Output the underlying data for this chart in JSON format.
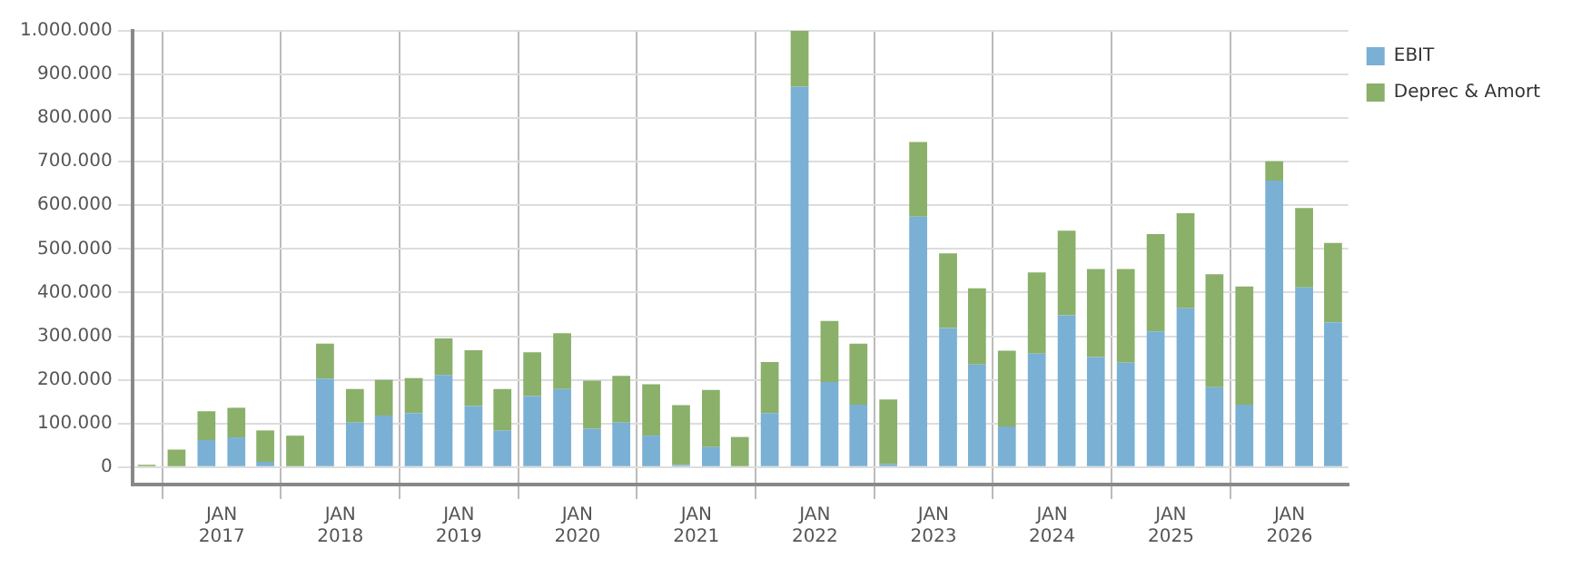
{
  "chart_data": {
    "type": "bar",
    "stacked": true,
    "grid": true,
    "legend": "top right",
    "x": [
      "2016-05-15",
      "2016-08-15",
      "2016-11-15",
      "2017-02-15",
      "2017-05-15",
      "2017-08-15",
      "2017-11-15",
      "2018-02-15",
      "2018-05-15",
      "2018-08-15",
      "2018-11-15",
      "2019-02-15",
      "2019-05-15",
      "2019-08-15",
      "2019-11-15",
      "2020-02-15",
      "2020-05-15",
      "2020-08-15",
      "2020-11-15",
      "2021-02-15",
      "2021-05-15",
      "2021-08-15",
      "2021-11-15",
      "2022-02-15",
      "2022-05-15",
      "2022-08-15",
      "2022-11-15",
      "2023-02-15",
      "2023-05-15",
      "2023-08-15",
      "2023-11-15",
      "2024-02-15",
      "2024-05-15",
      "2024-08-15",
      "2024-11-15",
      "2025-02-15",
      "2025-05-15",
      "2025-08-15",
      "2025-11-15",
      "2026-02-15",
      "2026-05-15"
    ],
    "series": [
      {
        "name": "EBIT",
        "color": "#7ab0d4",
        "values": [
          0,
          0,
          62000,
          68000,
          12000,
          0,
          203000,
          102000,
          118000,
          124000,
          211000,
          140000,
          84000,
          163000,
          179000,
          88000,
          102000,
          72000,
          5000,
          46000,
          0,
          124000,
          872000,
          195000,
          143000,
          7000,
          574000,
          319000,
          235000,
          93000,
          260000,
          348000,
          252000,
          239000,
          311000,
          364000,
          183000,
          143000,
          657000,
          412000,
          332000
        ]
      },
      {
        "name": "Deprec & Amort",
        "color": "#8ab06a",
        "values": [
          5000,
          40000,
          66000,
          68000,
          72000,
          72000,
          80000,
          77000,
          82000,
          80000,
          84000,
          128000,
          95000,
          100000,
          128000,
          110000,
          107000,
          118000,
          137000,
          131000,
          69000,
          117000,
          128000,
          140000,
          140000,
          148000,
          171000,
          171000,
          175000,
          174000,
          186000,
          194000,
          202000,
          215000,
          223000,
          218000,
          259000,
          271000,
          44000,
          182000,
          182000
        ]
      }
    ],
    "xlim": [
      "2016-04-01",
      "2026-07-01"
    ],
    "xticks": [
      {
        "value": "2017-01-01",
        "label": "JAN 2017"
      },
      {
        "value": "2018-01-01",
        "label": "JAN 2018"
      },
      {
        "value": "2019-01-01",
        "label": "JAN 2019"
      },
      {
        "value": "2020-01-01",
        "label": "JAN 2020"
      },
      {
        "value": "2021-01-01",
        "label": "JAN 2021"
      },
      {
        "value": "2022-01-01",
        "label": "JAN 2022"
      },
      {
        "value": "2023-01-01",
        "label": "JAN 2023"
      },
      {
        "value": "2024-01-01",
        "label": "JAN 2024"
      },
      {
        "value": "2025-01-01",
        "label": "JAN 2025"
      },
      {
        "value": "2026-01-01",
        "label": "JAN 2026"
      }
    ],
    "ylim": [
      -40000,
      1000000
    ],
    "yticks": [
      {
        "value": 0,
        "label": "0"
      },
      {
        "value": 100000,
        "label": "100.000"
      },
      {
        "value": 200000,
        "label": "200.000"
      },
      {
        "value": 300000,
        "label": "300.000"
      },
      {
        "value": 400000,
        "label": "400.000"
      },
      {
        "value": 500000,
        "label": "500.000"
      },
      {
        "value": 600000,
        "label": "600.000"
      },
      {
        "value": 700000,
        "label": "700.000"
      },
      {
        "value": 800000,
        "label": "800.000"
      },
      {
        "value": 900000,
        "label": "900.000"
      },
      {
        "value": 1000000,
        "label": "1.000.000"
      }
    ]
  }
}
